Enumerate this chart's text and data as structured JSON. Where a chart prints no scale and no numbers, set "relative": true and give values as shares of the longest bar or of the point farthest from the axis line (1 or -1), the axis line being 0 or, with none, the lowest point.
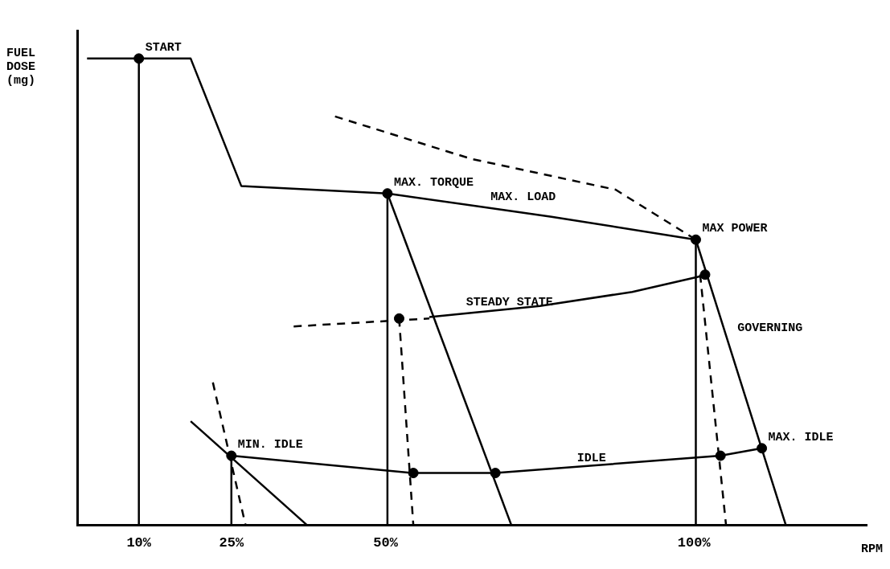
{
  "chart_data": {
    "type": "line",
    "relative": true,
    "xlabel": "RPM",
    "ylabel": "FUEL DOSE (mg)",
    "xlim": [
      0,
      128
    ],
    "xticks": [
      {
        "value": 10,
        "label": "10%"
      },
      {
        "value": 25,
        "label": "25%"
      },
      {
        "value": 50,
        "label": "50%"
      },
      {
        "value": 100,
        "label": "100%"
      }
    ],
    "grid": false,
    "legend": false,
    "tick_labels": "x",
    "series": [
      {
        "color": "#000000",
        "line_style": "solid",
        "x": [
          1.6,
          18.4,
          26.6,
          50.3,
          76.9,
          100.3,
          114.9
        ],
        "values": [
          1,
          1,
          0.727,
          0.711,
          0.661,
          0.612,
          0
        ]
      },
      {
        "color": "#000000",
        "line_style": "solid",
        "x": [
          10,
          10
        ],
        "values": [
          1,
          0
        ]
      },
      {
        "color": "#000000",
        "line_style": "solid",
        "x": [
          50.3,
          70.4
        ],
        "values": [
          0.711,
          0
        ]
      },
      {
        "color": "#000000",
        "line_style": "solid",
        "x": [
          57.1,
          75,
          90,
          102.2
        ],
        "values": [
          0.446,
          0.47,
          0.5,
          0.537
        ]
      },
      {
        "color": "#000000",
        "line_style": "dashed",
        "x": [
          35.1,
          57.1
        ],
        "values": [
          0.426,
          0.443
        ]
      },
      {
        "color": "#000000",
        "line_style": "solid",
        "x": [
          25,
          54.5,
          67.8,
          104.3,
          111
        ],
        "values": [
          0.149,
          0.112,
          0.112,
          0.149,
          0.165
        ]
      },
      {
        "color": "#000000",
        "line_style": "solid",
        "x": [
          18.4,
          37.3
        ],
        "values": [
          0.223,
          0
        ]
      },
      {
        "color": "#000000",
        "line_style": "dashed",
        "x": [
          22,
          27.3
        ],
        "values": [
          0.306,
          0
        ]
      },
      {
        "color": "#000000",
        "line_style": "solid",
        "x": [
          25,
          25
        ],
        "values": [
          0.149,
          0
        ]
      },
      {
        "color": "#000000",
        "line_style": "solid",
        "x": [
          50.3,
          50.3
        ],
        "values": [
          0.711,
          0
        ]
      },
      {
        "color": "#000000",
        "line_style": "dashed",
        "x": [
          52.2,
          54.5
        ],
        "values": [
          0.443,
          0
        ]
      },
      {
        "color": "#000000",
        "line_style": "solid",
        "x": [
          100.3,
          100.3
        ],
        "values": [
          0.612,
          0
        ]
      },
      {
        "color": "#000000",
        "line_style": "dashed",
        "x": [
          101,
          105.2
        ],
        "values": [
          0.537,
          0
        ]
      },
      {
        "color": "#000000",
        "line_style": "dashed",
        "x": [
          41.8,
          63.9,
          87.3,
          100.3
        ],
        "values": [
          0.876,
          0.785,
          0.719,
          0.612
        ]
      },
      {
        "type": "scatter",
        "color": "#000000",
        "marker": "circle",
        "x": [
          10,
          50.3,
          100.3,
          101.8,
          25,
          52.2,
          54.5,
          67.8,
          104.3,
          111
        ],
        "values": [
          1,
          0.711,
          0.612,
          0.537,
          0.149,
          0.443,
          0.112,
          0.112,
          0.149,
          0.165
        ]
      }
    ],
    "annotations": [
      {
        "text": "START",
        "x": 10,
        "y": 1
      },
      {
        "text": "MAX. TORQUE",
        "x": 50.3,
        "y": 0.711
      },
      {
        "text": "MAX. LOAD",
        "x": 66,
        "y": 0.68
      },
      {
        "text": "MAX POWER",
        "x": 100.3,
        "y": 0.612
      },
      {
        "text": "STEADY STATE",
        "x": 62,
        "y": 0.455
      },
      {
        "text": "GOVERNING",
        "x": 106,
        "y": 0.4
      },
      {
        "text": "MAX. IDLE",
        "x": 111,
        "y": 0.165
      },
      {
        "text": "MIN. IDLE",
        "x": 25,
        "y": 0.149
      },
      {
        "text": "IDLE",
        "x": 80,
        "y": 0.12
      }
    ]
  }
}
